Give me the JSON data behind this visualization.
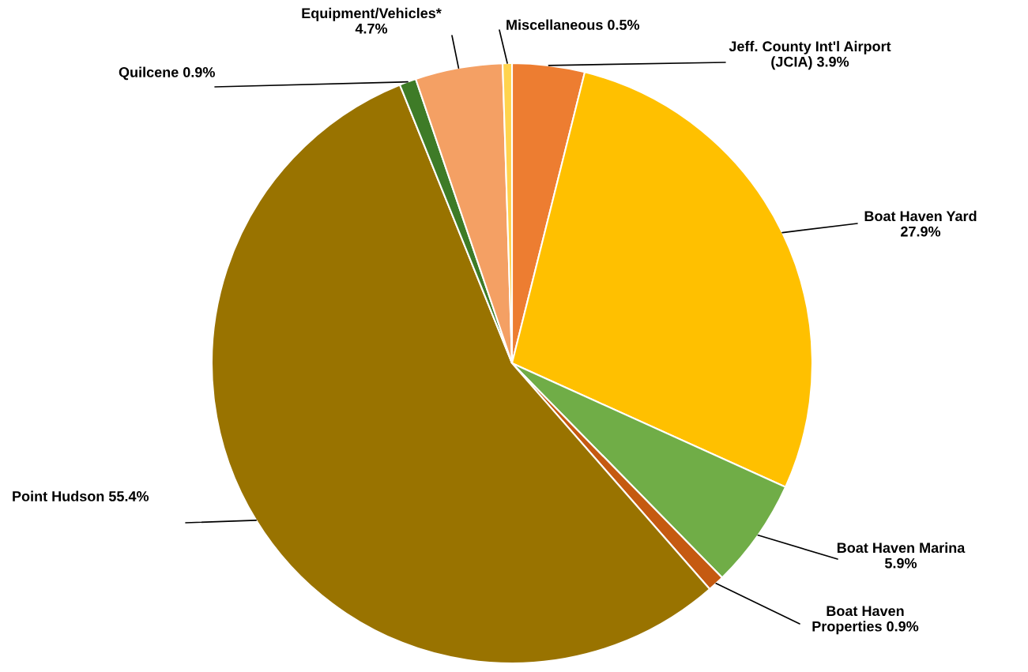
{
  "chart_data": {
    "type": "pie",
    "categories": [
      "Jeff. County Int'l Airport (JCIA)",
      "Boat Haven Yard",
      "Boat Haven Marina",
      "Boat Haven Properties",
      "Point Hudson",
      "Quilcene",
      "Equipment/Vehicles*",
      "Miscellaneous"
    ],
    "values": [
      3.9,
      27.9,
      5.9,
      0.9,
      55.4,
      0.9,
      4.7,
      0.5
    ],
    "colors": [
      "#ed7d31",
      "#ffc000",
      "#70ad47",
      "#c55a11",
      "#997300",
      "#3e7b27",
      "#f4a064",
      "#ffd34d"
    ],
    "value_labels": [
      "3.9%",
      "27.9%",
      "5.9%",
      "0.9%",
      "55.4%",
      "0.9%",
      "4.7%",
      "0.5%"
    ]
  }
}
